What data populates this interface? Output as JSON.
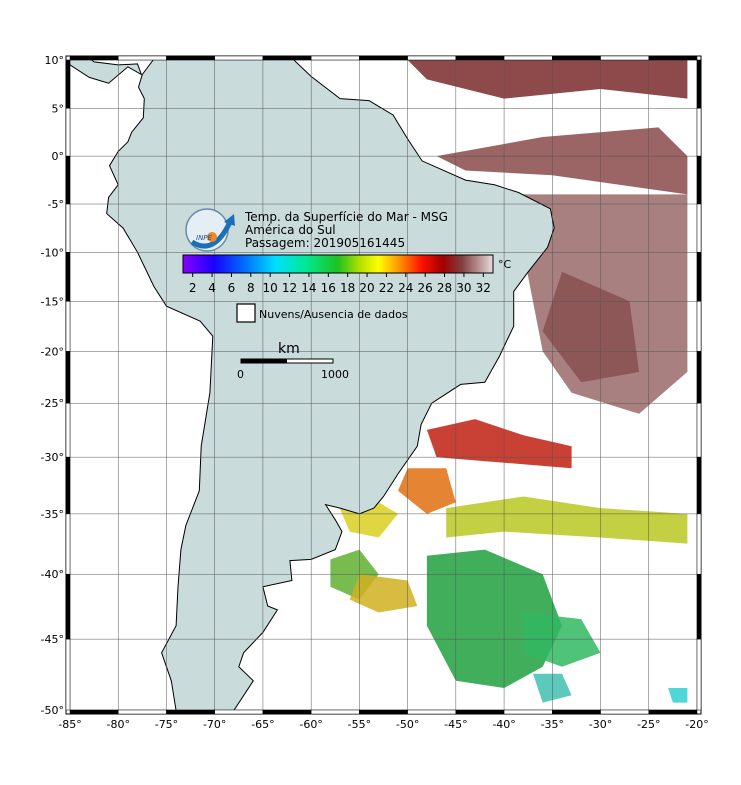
{
  "header": {
    "title": "Temp. da Superfície do Mar - MSG",
    "region": "América do Sul",
    "pass": "Passagem: 201905161445"
  },
  "logo": "INPE",
  "colorbar": {
    "ticks": [
      "2",
      "4",
      "6",
      "8",
      "10",
      "12",
      "14",
      "16",
      "18",
      "20",
      "22",
      "24",
      "26",
      "28",
      "30",
      "32"
    ],
    "unit": "°C"
  },
  "legend": "Nuvens/Ausencia de dados",
  "scale": {
    "unit": "km",
    "start": "0",
    "end": "1000"
  },
  "axes": {
    "lat_ticks": [
      "10°",
      "5°",
      "0°",
      "-5°",
      "-10°",
      "-15°",
      "-20°",
      "-25°",
      "-30°",
      "-35°",
      "-40°",
      "-45°",
      "-50°"
    ],
    "lon_ticks": [
      "-85°",
      "-80°",
      "-75°",
      "-70°",
      "-65°",
      "-60°",
      "-55°",
      "-50°",
      "-45°",
      "-40°",
      "-35°",
      "-30°",
      "-25°",
      "-20°"
    ]
  }
}
